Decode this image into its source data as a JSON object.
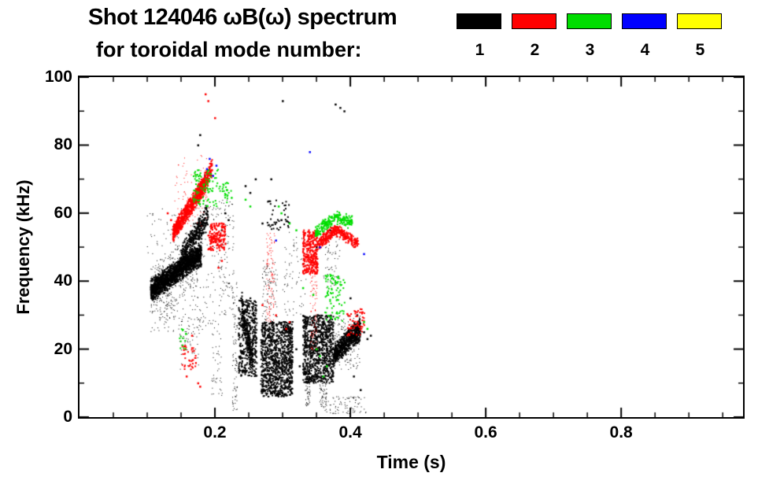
{
  "chart_data": {
    "type": "scatter",
    "title": "Shot 124046 ωB(ω) spectrum",
    "subtitle": "for toroidal mode number:",
    "xlabel": "Time (s)",
    "ylabel": "Frequency (kHz)",
    "xlim": [
      0,
      0.98
    ],
    "ylim": [
      0,
      100
    ],
    "xticks": {
      "major": [
        0.2,
        0.4,
        0.6,
        0.8
      ],
      "labels": [
        "0.2",
        "0.4",
        "0.6",
        "0.8"
      ],
      "minor_step": 0.05
    },
    "yticks": {
      "major": [
        0,
        20,
        40,
        60,
        80,
        100
      ],
      "labels": [
        "0",
        "20",
        "40",
        "60",
        "80",
        "100"
      ],
      "minor_step": 10
    },
    "legend": [
      {
        "label": "1",
        "color": "#000000"
      },
      {
        "label": "2",
        "color": "#ff0000"
      },
      {
        "label": "3",
        "color": "#00dd00"
      },
      {
        "label": "4",
        "color": "#0000ff"
      },
      {
        "label": "5",
        "color": "#ffff00"
      }
    ],
    "series": [
      {
        "name": "1",
        "color": "#000000",
        "clusters": [
          {
            "mode": "band",
            "t": [
              0.105,
              0.18
            ],
            "f": [
              37,
              48
            ],
            "spread": 2.2,
            "n": 1500,
            "size": 2
          },
          {
            "mode": "band",
            "t": [
              0.105,
              0.175
            ],
            "f": [
              37,
              46
            ],
            "spread": 5,
            "n": 400,
            "size": 1
          },
          {
            "mode": "band",
            "t": [
              0.15,
              0.19
            ],
            "f": [
              47,
              59
            ],
            "spread": 2.5,
            "n": 350,
            "size": 2
          },
          {
            "mode": "cloud",
            "t": [
              0.1,
              0.21
            ],
            "f": [
              25,
              62
            ],
            "n": 260,
            "size": 1
          },
          {
            "mode": "cloud",
            "t": [
              0.205,
              0.228
            ],
            "f": [
              30,
              65
            ],
            "n": 110,
            "size": 1
          },
          {
            "mode": "cloud",
            "t": [
              0.195,
              0.212
            ],
            "f": [
              5,
              25
            ],
            "n": 40,
            "size": 1
          },
          {
            "mode": "cloud",
            "t": [
              0.226,
              0.233
            ],
            "f": [
              2,
              40
            ],
            "n": 90,
            "size": 1
          },
          {
            "mode": "cloud",
            "t": [
              0.235,
              0.262
            ],
            "f": [
              12,
              35
            ],
            "n": 380,
            "size": 2
          },
          {
            "mode": "band",
            "t": [
              0.24,
              0.256
            ],
            "f": [
              32,
              16
            ],
            "spread": 3,
            "n": 220,
            "size": 2
          },
          {
            "mode": "cloud",
            "t": [
              0.268,
              0.315
            ],
            "f": [
              6,
              28
            ],
            "n": 1000,
            "size": 2
          },
          {
            "mode": "cloud",
            "t": [
              0.27,
              0.292
            ],
            "f": [
              28,
              46
            ],
            "n": 90,
            "size": 1
          },
          {
            "mode": "cloud",
            "t": [
              0.275,
              0.31
            ],
            "f": [
              55,
              64
            ],
            "n": 45,
            "size": 2
          },
          {
            "mode": "cloud",
            "t": [
              0.33,
              0.375
            ],
            "f": [
              10,
              30
            ],
            "n": 850,
            "size": 2
          },
          {
            "mode": "cloud",
            "t": [
              0.333,
              0.341
            ],
            "f": [
              3,
              12
            ],
            "n": 60,
            "size": 1
          },
          {
            "mode": "cloud",
            "t": [
              0.355,
              0.366
            ],
            "f": [
              3,
              12
            ],
            "n": 60,
            "size": 1
          },
          {
            "mode": "band",
            "t": [
              0.375,
              0.415
            ],
            "f": [
              18,
              26
            ],
            "spread": 2.2,
            "n": 600,
            "size": 2
          },
          {
            "mode": "cloud",
            "t": [
              0.375,
              0.415
            ],
            "f": [
              14,
              30
            ],
            "n": 150,
            "size": 1
          },
          {
            "mode": "cloud",
            "t": [
              0.36,
              0.425
            ],
            "f": [
              1,
              6
            ],
            "n": 90,
            "size": 1
          },
          {
            "mode": "cloud",
            "t": [
              0.3,
              0.335
            ],
            "f": [
              30,
              55
            ],
            "n": 70,
            "size": 1
          },
          {
            "mode": "cloud",
            "t": [
              0.36,
              0.385
            ],
            "f": [
              38,
              56
            ],
            "n": 60,
            "size": 1
          },
          {
            "mode": "cloud",
            "t": [
              0.145,
              0.178
            ],
            "f": [
              14,
              30
            ],
            "n": 55,
            "size": 1
          },
          {
            "mode": "cloud",
            "t": [
              0.118,
              0.142
            ],
            "f": [
              27,
              35
            ],
            "n": 45,
            "size": 1
          }
        ],
        "points": [
          [
            0.175,
            80
          ],
          [
            0.178,
            83
          ],
          [
            0.185,
            71
          ],
          [
            0.26,
            70
          ],
          [
            0.283,
            70
          ],
          [
            0.3,
            93
          ],
          [
            0.378,
            92
          ],
          [
            0.385,
            91
          ],
          [
            0.391,
            90
          ],
          [
            0.245,
            68
          ],
          [
            0.252,
            66
          ],
          [
            0.27,
            57
          ],
          [
            0.298,
            58
          ],
          [
            0.42,
            25
          ],
          [
            0.425,
            23
          ],
          [
            0.43,
            24
          ],
          [
            0.165,
            62
          ],
          [
            0.17,
            65
          ],
          [
            0.21,
            55
          ],
          [
            0.215,
            60
          ],
          [
            0.22,
            58
          ],
          [
            0.32,
            20
          ],
          [
            0.325,
            15
          ],
          [
            0.33,
            45
          ],
          [
            0.35,
            50
          ],
          [
            0.37,
            55
          ],
          [
            0.4,
            35
          ],
          [
            0.41,
            30
          ],
          [
            0.405,
            12
          ],
          [
            0.415,
            8
          ]
        ]
      },
      {
        "name": "2",
        "color": "#ff0000",
        "clusters": [
          {
            "mode": "band",
            "t": [
              0.138,
              0.186
            ],
            "f": [
              54,
              69
            ],
            "spread": 1.8,
            "n": 750,
            "size": 2
          },
          {
            "mode": "band",
            "t": [
              0.176,
              0.196
            ],
            "f": [
              66,
              73
            ],
            "spread": 1.8,
            "n": 220,
            "size": 2
          },
          {
            "mode": "cloud",
            "t": [
              0.14,
              0.192
            ],
            "f": [
              56,
              77
            ],
            "n": 90,
            "size": 1
          },
          {
            "mode": "cloud",
            "t": [
              0.19,
              0.216
            ],
            "f": [
              49,
              57
            ],
            "n": 170,
            "size": 2
          },
          {
            "mode": "cloud",
            "t": [
              0.276,
              0.289
            ],
            "f": [
              28,
              55
            ],
            "n": 110,
            "size": 1
          },
          {
            "mode": "cloud",
            "t": [
              0.33,
              0.352
            ],
            "f": [
              42,
              55
            ],
            "n": 320,
            "size": 2
          },
          {
            "mode": "cloud",
            "t": [
              0.34,
              0.351
            ],
            "f": [
              18,
              42
            ],
            "n": 80,
            "size": 1
          },
          {
            "mode": "band",
            "t": [
              0.352,
              0.378
            ],
            "f": [
              51,
              55
            ],
            "spread": 1.2,
            "n": 160,
            "size": 2
          },
          {
            "mode": "band",
            "t": [
              0.378,
              0.412
            ],
            "f": [
              55,
              51
            ],
            "spread": 1.2,
            "n": 160,
            "size": 2
          },
          {
            "mode": "cloud",
            "t": [
              0.395,
              0.422
            ],
            "f": [
              24,
              32
            ],
            "n": 60,
            "size": 2
          },
          {
            "mode": "cloud",
            "t": [
              0.15,
              0.172
            ],
            "f": [
              14,
              21
            ],
            "n": 40,
            "size": 2
          }
        ],
        "points": [
          [
            0.175,
            10
          ],
          [
            0.178,
            9
          ],
          [
            0.19,
            93
          ],
          [
            0.186,
            95
          ],
          [
            0.2,
            88
          ],
          [
            0.27,
            33
          ],
          [
            0.29,
            30
          ],
          [
            0.305,
            26
          ],
          [
            0.31,
            28
          ],
          [
            0.13,
            60
          ],
          [
            0.135,
            58
          ],
          [
            0.205,
            44
          ],
          [
            0.21,
            46
          ],
          [
            0.166,
            24
          ],
          [
            0.158,
            12
          ]
        ]
      },
      {
        "name": "3",
        "color": "#00dd00",
        "clusters": [
          {
            "mode": "cloud",
            "t": [
              0.168,
              0.205
            ],
            "f": [
              62,
              73
            ],
            "n": 90,
            "size": 2
          },
          {
            "mode": "cloud",
            "t": [
              0.206,
              0.225
            ],
            "f": [
              63,
              69
            ],
            "n": 28,
            "size": 2
          },
          {
            "mode": "band",
            "t": [
              0.348,
              0.378
            ],
            "f": [
              54,
              59
            ],
            "spread": 1.3,
            "n": 130,
            "size": 2
          },
          {
            "mode": "band",
            "t": [
              0.378,
              0.403
            ],
            "f": [
              59,
              57
            ],
            "spread": 1.3,
            "n": 100,
            "size": 2
          },
          {
            "mode": "cloud",
            "t": [
              0.362,
              0.392
            ],
            "f": [
              28,
              42
            ],
            "n": 90,
            "size": 2
          },
          {
            "mode": "cloud",
            "t": [
              0.148,
              0.158
            ],
            "f": [
              20,
              26
            ],
            "n": 14,
            "size": 2
          }
        ],
        "points": [
          [
            0.33,
            38
          ],
          [
            0.345,
            36
          ],
          [
            0.36,
            12
          ],
          [
            0.365,
            15
          ],
          [
            0.42,
            28
          ],
          [
            0.425,
            26
          ],
          [
            0.245,
            64
          ],
          [
            0.252,
            62
          ],
          [
            0.298,
            60
          ],
          [
            0.294,
            62
          ],
          [
            0.35,
            20
          ],
          [
            0.355,
            18
          ],
          [
            0.31,
            57
          ],
          [
            0.32,
            55
          ]
        ]
      },
      {
        "name": "4",
        "color": "#0000ff",
        "clusters": [],
        "points": [
          [
            0.188,
            73
          ],
          [
            0.192,
            76
          ],
          [
            0.197,
            71
          ],
          [
            0.202,
            74
          ],
          [
            0.34,
            78
          ],
          [
            0.355,
            50
          ],
          [
            0.29,
            52
          ],
          [
            0.42,
            48
          ]
        ]
      },
      {
        "name": "5",
        "color": "#ffff00",
        "clusters": [],
        "points": []
      }
    ]
  }
}
